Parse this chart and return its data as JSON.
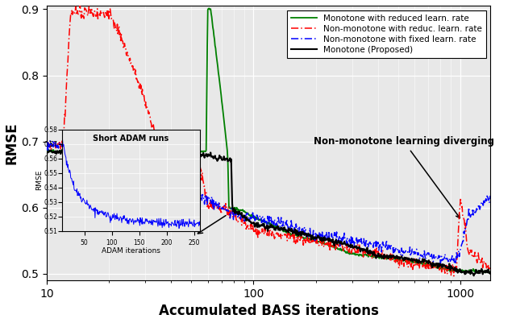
{
  "title": "",
  "xlabel": "Accumulated BASS iterations",
  "ylabel": "RMSE",
  "xlim": [
    10,
    1400
  ],
  "ylim": [
    0.49,
    0.905
  ],
  "yticks": [
    0.5,
    0.6,
    0.7,
    0.8,
    0.9
  ],
  "xticks": [
    10,
    100,
    1000
  ],
  "xticklabels": [
    "10",
    "100",
    "1000"
  ],
  "yticklabels": [
    "0.5",
    "0.6",
    "0.7",
    "0.8",
    "0.9"
  ],
  "legend_entries": [
    "Monotone (Proposed)",
    "Non-monotone with fixed learn. rate",
    "Monotone with reduced learn. rate",
    "Non-monotone with reduc. learn. rate"
  ],
  "legend_colors": [
    "black",
    "blue",
    "green",
    "red"
  ],
  "annotation1_text": "Non-monotone learning diverging",
  "annotation2_text": "Short ADAM runs",
  "inset_xlabel": "ADAM iterations",
  "inset_ylabel": "RMSE",
  "bg_color": "#e8e8e8"
}
